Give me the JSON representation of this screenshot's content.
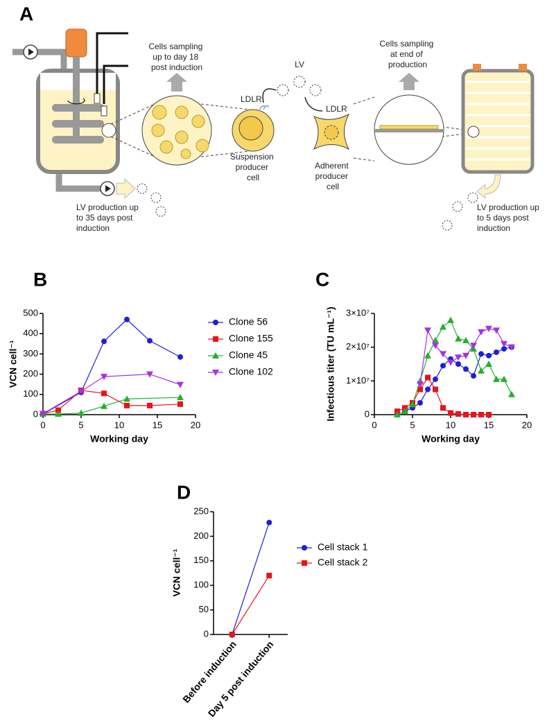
{
  "diagram": {
    "panel": "A",
    "sampling_suspension": [
      "Cells sampling",
      "up to day 18",
      "post induction"
    ],
    "lv": "LV",
    "ldlr_suspension": "LDLR",
    "ldlr_adherent": "LDLR",
    "suspension_cell": [
      "Suspension",
      "producer",
      "cell"
    ],
    "adherent_cell": [
      "Adherent",
      "producer",
      "cell"
    ],
    "sampling_adherent": [
      "Cells sampling",
      "at end of",
      "production"
    ],
    "production_suspension": [
      "LV production up",
      "to 35 days post",
      "induction"
    ],
    "production_adherent": [
      "LV production up",
      "to 5 days post",
      "induction"
    ]
  },
  "chart_data": [
    {
      "panel": "B",
      "type": "line",
      "xlabel": "Working day",
      "ylabel": "VCN cell⁻¹",
      "xlim": [
        0,
        20
      ],
      "xticks": [
        0,
        5,
        10,
        15,
        20
      ],
      "ylim": [
        0,
        500
      ],
      "yticks": [
        0,
        100,
        200,
        300,
        400,
        500
      ],
      "legend": "right",
      "series": [
        {
          "name": "Clone 56",
          "color": "#1f1fd6",
          "x": [
            0,
            5,
            8,
            11,
            14,
            18
          ],
          "values": [
            3,
            110,
            362,
            470,
            365,
            285
          ]
        },
        {
          "name": "Clone 155",
          "color": "#e8141b",
          "x": [
            0,
            2,
            5,
            8,
            11,
            14,
            18
          ],
          "values": [
            5,
            22,
            120,
            105,
            45,
            45,
            52
          ]
        },
        {
          "name": "Clone 45",
          "color": "#22b02c",
          "x": [
            0,
            2,
            5,
            8,
            11,
            18
          ],
          "values": [
            3,
            3,
            8,
            42,
            78,
            85
          ]
        },
        {
          "name": "Clone 102",
          "color": "#a632e0",
          "x": [
            0,
            5,
            8,
            14,
            18
          ],
          "values": [
            5,
            115,
            188,
            200,
            148
          ]
        }
      ]
    },
    {
      "panel": "C",
      "type": "line",
      "xlabel": "Working day",
      "ylabel": "Infectious titer (TU mL⁻¹)",
      "xlim": [
        0,
        20
      ],
      "xticks": [
        0,
        5,
        10,
        15,
        20
      ],
      "ylim": [
        0,
        30000000
      ],
      "yticks": [
        0,
        {
          "value": 10000000,
          "label": "1×10⁷"
        },
        {
          "value": 20000000,
          "label": "2×10⁷"
        },
        {
          "value": 30000000,
          "label": "3×10⁷"
        }
      ],
      "series": [
        {
          "color": "#1f1fd6",
          "x": [
            3,
            4,
            5,
            6,
            7,
            8,
            9,
            10,
            11,
            12,
            13,
            14,
            15,
            16,
            17,
            18
          ],
          "values": [
            0,
            1000000,
            2000000,
            3500000,
            7500000,
            10500000,
            14500000,
            16500000,
            15000000,
            13500000,
            11500000,
            18000000,
            17500000,
            18500000,
            19500000,
            20000000
          ]
        },
        {
          "color": "#e8141b",
          "x": [
            3,
            4,
            5,
            6,
            7,
            8,
            9,
            10,
            11,
            12,
            13,
            14,
            15
          ],
          "values": [
            1000000,
            2000000,
            3500000,
            7500000,
            11000000,
            7500000,
            2000000,
            500000,
            200000,
            0,
            0,
            0,
            0
          ]
        },
        {
          "color": "#22b02c",
          "x": [
            3,
            4,
            5,
            6,
            7,
            8,
            9,
            10,
            11,
            12,
            13,
            14,
            15,
            16,
            17,
            18
          ],
          "values": [
            0,
            1000000,
            3000000,
            10000000,
            17500000,
            22000000,
            26000000,
            28000000,
            22500000,
            22000000,
            19500000,
            13000000,
            15000000,
            10500000,
            10500000,
            6000000
          ]
        },
        {
          "color": "#a632e0",
          "x": [
            6,
            7,
            8,
            9,
            10,
            11,
            12,
            13,
            14,
            15,
            16,
            17,
            18
          ],
          "values": [
            9000000,
            25000000,
            20500000,
            18000000,
            15500000,
            17000000,
            17500000,
            20500000,
            24500000,
            25500000,
            25000000,
            21000000,
            20000000
          ]
        }
      ]
    },
    {
      "panel": "D",
      "type": "line",
      "ylabel": "VCN cell⁻¹",
      "categories": [
        "Before induction",
        "Day 5 post induction"
      ],
      "ylim": [
        0,
        250
      ],
      "yticks": [
        0,
        50,
        100,
        150,
        200,
        250
      ],
      "legend": "right",
      "series": [
        {
          "name": "Cell stack 1",
          "color": "#1f1fd6",
          "values": [
            0,
            228
          ]
        },
        {
          "name": "Cell stack 2",
          "color": "#e8141b",
          "values": [
            0,
            120
          ]
        }
      ]
    }
  ]
}
